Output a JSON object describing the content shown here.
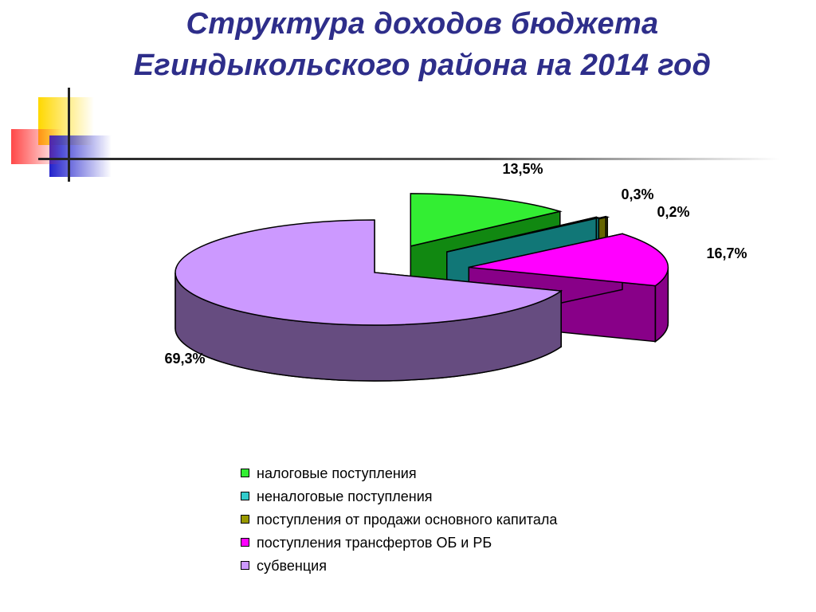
{
  "slide": {
    "title_line1": "Структура доходов бюджета",
    "title_line2": "Егиндыкольского района на 2014 год"
  },
  "chart_data": {
    "type": "pie",
    "style": "3d-exploded",
    "legend_position": "bottom",
    "categories": [
      "налоговые поступления",
      "неналоговые поступления",
      "поступления от продажи основного капитала",
      "поступления трансфертов ОБ и РБ",
      "субвенция"
    ],
    "values": [
      13.5,
      0.3,
      0.2,
      16.7,
      69.3
    ],
    "labels": [
      "13,5%",
      "0,3%",
      "0,2%",
      "16,7%",
      "69,3%"
    ],
    "colors": [
      "#33ee33",
      "#33cccc",
      "#999900",
      "#ff00ff",
      "#cc99ff"
    ],
    "side_colors": [
      "#118811",
      "#117777",
      "#666600",
      "#880088",
      "#664c80"
    ]
  }
}
